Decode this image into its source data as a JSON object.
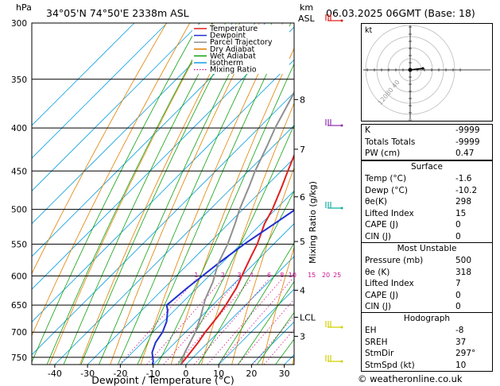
{
  "header": {
    "hpa_label": "hPa",
    "location": "34°05'N  74°50'E  2338m  ASL",
    "km_label": "km",
    "asl_label": "ASL",
    "datetime": "06.03.2025  06GMT  (Base: 18)"
  },
  "legend": {
    "items": [
      {
        "label": "Temperature",
        "color": "#e02020",
        "style": "solid"
      },
      {
        "label": "Dewpoint",
        "color": "#2030d0",
        "style": "solid"
      },
      {
        "label": "Parcel Trajectory",
        "color": "#909090",
        "style": "solid"
      },
      {
        "label": "Dry Adiabat",
        "color": "#e08000",
        "style": "solid"
      },
      {
        "label": "Wet Adiabat",
        "color": "#10a010",
        "style": "solid"
      },
      {
        "label": "Isotherm",
        "color": "#10a0e0",
        "style": "solid"
      },
      {
        "label": "Mixing Ratio",
        "color": "#d01090",
        "style": "dotted"
      }
    ]
  },
  "chart_data": {
    "type": "line",
    "xlabel": "Dewpoint / Temperature (°C)",
    "ylabel": "hPa",
    "xlim": [
      -47,
      33
    ],
    "ylim": [
      765,
      300
    ],
    "x_ticks": [
      -40,
      -30,
      -20,
      -10,
      0,
      10,
      20,
      30
    ],
    "pressure_levels": [
      300,
      350,
      400,
      450,
      500,
      550,
      600,
      650,
      700,
      750
    ],
    "km_ticks": [
      {
        "label": "8",
        "p": 370
      },
      {
        "label": "7",
        "p": 424
      },
      {
        "label": "6",
        "p": 483
      },
      {
        "label": "5",
        "p": 546
      },
      {
        "label": "4",
        "p": 624
      },
      {
        "label": "LCL",
        "p": 672
      },
      {
        "label": "3",
        "p": 708
      }
    ],
    "right_axis_label": "Mixing Ratio (g/kg)",
    "mixing_ratio_labels": [
      "1",
      "2",
      "3",
      "4",
      "6",
      "8",
      "10",
      "15",
      "20",
      "25"
    ],
    "series": [
      {
        "name": "Temperature",
        "color": "#e02020",
        "points": [
          [
            -1.6,
            765
          ],
          [
            -2,
            750
          ],
          [
            -3,
            720
          ],
          [
            -4,
            700
          ],
          [
            -5,
            670
          ],
          [
            -6,
            650
          ],
          [
            -8,
            620
          ],
          [
            -10,
            600
          ],
          [
            -13,
            570
          ],
          [
            -15,
            550
          ],
          [
            -19,
            520
          ],
          [
            -21,
            500
          ],
          [
            -25,
            470
          ],
          [
            -28,
            450
          ],
          [
            -31,
            430
          ],
          [
            -33,
            400
          ],
          [
            -37,
            370
          ],
          [
            -39,
            350
          ],
          [
            -42,
            330
          ],
          [
            -45,
            300
          ]
        ]
      },
      {
        "name": "Dewpoint",
        "color": "#2030d0",
        "points": [
          [
            -10.2,
            765
          ],
          [
            -11,
            758
          ],
          [
            -14,
            740
          ],
          [
            -16,
            720
          ],
          [
            -17,
            700
          ],
          [
            -19,
            680
          ],
          [
            -22,
            660
          ],
          [
            -24,
            650
          ],
          [
            -23,
            620
          ],
          [
            -22,
            600
          ],
          [
            -21,
            580
          ],
          [
            -19,
            550
          ],
          [
            -16,
            520
          ],
          [
            -14,
            500
          ],
          [
            -13,
            480
          ],
          [
            -14,
            450
          ],
          [
            -17,
            420
          ],
          [
            -19,
            400
          ],
          [
            -22,
            370
          ],
          [
            -24,
            350
          ],
          [
            -28,
            330
          ],
          [
            -33,
            300
          ]
        ]
      },
      {
        "name": "Parcel Trajectory",
        "color": "#909090",
        "points": [
          [
            -1.6,
            765
          ],
          [
            -4,
            740
          ],
          [
            -7,
            700
          ],
          [
            -10,
            672
          ],
          [
            -14,
            640
          ],
          [
            -17,
            610
          ],
          [
            -21,
            580
          ],
          [
            -24,
            550
          ],
          [
            -28,
            520
          ],
          [
            -31,
            500
          ],
          [
            -35,
            470
          ],
          [
            -38,
            450
          ],
          [
            -42,
            420
          ],
          [
            -45,
            400
          ],
          [
            -49,
            370
          ],
          [
            -52,
            350
          ],
          [
            -56,
            320
          ],
          [
            -59,
            300
          ]
        ]
      }
    ]
  },
  "indices": [
    {
      "label": "K",
      "value": "-9999"
    },
    {
      "label": "Totals Totals",
      "value": "-9999"
    },
    {
      "label": "PW (cm)",
      "value": "0.47"
    }
  ],
  "surface": {
    "title": "Surface",
    "rows": [
      {
        "label": "Temp (°C)",
        "value": "-1.6"
      },
      {
        "label": "Dewp (°C)",
        "value": "-10.2"
      },
      {
        "label": "θe(K)",
        "value": "298"
      },
      {
        "label": "Lifted Index",
        "value": "15"
      },
      {
        "label": "CAPE (J)",
        "value": "0"
      },
      {
        "label": "CIN (J)",
        "value": "0"
      }
    ]
  },
  "most_unstable": {
    "title": "Most Unstable",
    "rows": [
      {
        "label": "Pressure (mb)",
        "value": "500"
      },
      {
        "label": "θe (K)",
        "value": "318"
      },
      {
        "label": "Lifted Index",
        "value": "7"
      },
      {
        "label": "CAPE (J)",
        "value": "0"
      },
      {
        "label": "CIN (J)",
        "value": "0"
      }
    ]
  },
  "hodograph": {
    "title": "Hodograph",
    "kt_label": "kt",
    "ring_labels": [
      "40",
      "80",
      "120"
    ],
    "rows": [
      {
        "label": "EH",
        "value": "-8"
      },
      {
        "label": "SREH",
        "value": "37"
      },
      {
        "label": "StmDir",
        "value": "297°"
      },
      {
        "label": "StmSpd (kt)",
        "value": "10"
      }
    ]
  },
  "footer": "© weatheronline.co.uk"
}
